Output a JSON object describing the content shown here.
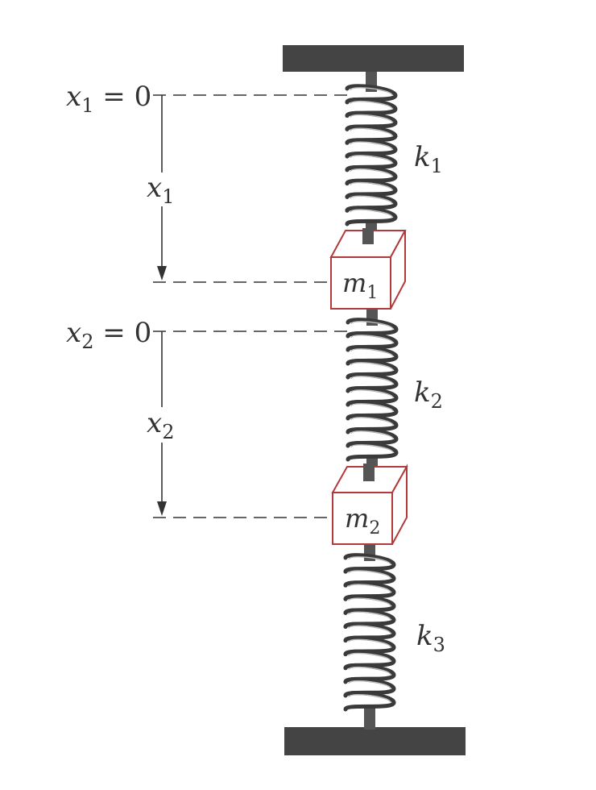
{
  "labels": {
    "x1_zero": {
      "var": "x",
      "sub": "1",
      "rest": " = 0"
    },
    "x1": {
      "var": "x",
      "sub": "1"
    },
    "x2_zero": {
      "var": "x",
      "sub": "2",
      "rest": " = 0"
    },
    "x2": {
      "var": "x",
      "sub": "2"
    },
    "k1": {
      "var": "k",
      "sub": "1"
    },
    "k2": {
      "var": "k",
      "sub": "2"
    },
    "k3": {
      "var": "k",
      "sub": "3"
    },
    "m1": {
      "var": "m",
      "sub": "1"
    },
    "m2": {
      "var": "m",
      "sub": "2"
    }
  },
  "colors": {
    "support": "#444444",
    "spring": "#3a3a3a",
    "mass_edge": "#b23a3a",
    "line": "#333333"
  }
}
